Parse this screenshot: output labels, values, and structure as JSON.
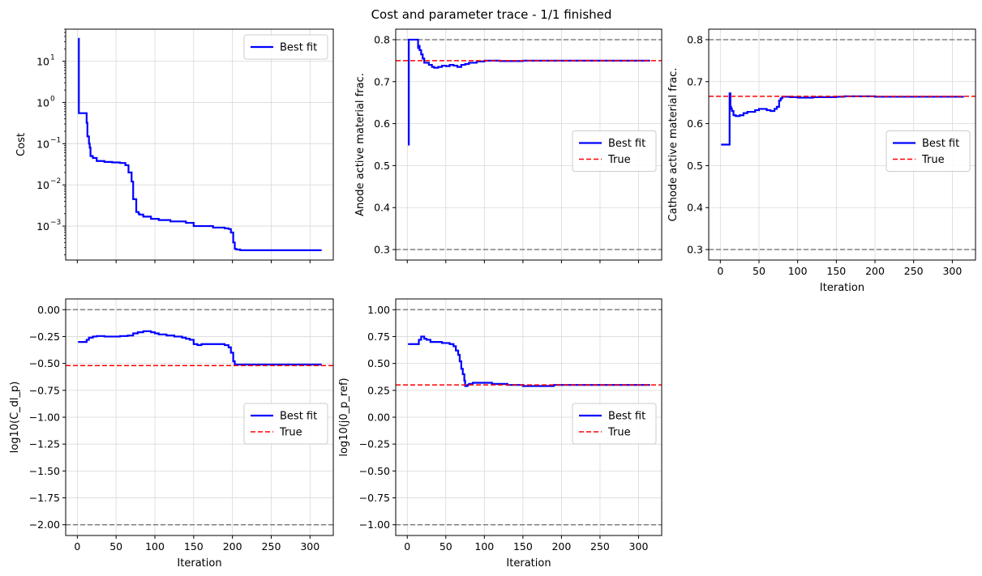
{
  "figure": {
    "title": "Cost and parameter trace - 1/1 finished",
    "colors": {
      "best_fit": "#0000ff",
      "true_line": "#ff0000",
      "bounds": "#808080",
      "grid": "#d9d9d9"
    }
  },
  "chart_data": [
    {
      "id": "cost",
      "type": "line",
      "yscale": "log",
      "title": "",
      "xlabel": "",
      "ylabel": "Cost",
      "xlim": [
        -15,
        330
      ],
      "ylim": [
        0.00015,
        60
      ],
      "xticks": [
        0,
        50,
        100,
        150,
        200,
        250,
        300
      ],
      "show_xticklabels": false,
      "yticks": [
        0.001,
        0.01,
        0.1,
        1,
        10
      ],
      "yticklabels": [
        "10",
        "10",
        "10",
        "10",
        "10"
      ],
      "ytick_exponents": [
        "−3",
        "−2",
        "−1",
        "0",
        "1"
      ],
      "legend": {
        "position": "top-right",
        "entries": [
          "Best fit"
        ]
      },
      "series": [
        {
          "name": "Best fit",
          "style": "solid",
          "steps": true,
          "x": [
            1,
            2,
            11,
            12,
            13,
            15,
            16,
            17,
            20,
            25,
            35,
            45,
            55,
            62,
            66,
            70,
            72,
            73,
            75,
            76,
            79,
            80,
            85,
            95,
            105,
            120,
            140,
            150,
            155,
            175,
            190,
            195,
            198,
            201,
            203,
            205,
            210,
            300,
            315
          ],
          "y": [
            35,
            0.55,
            0.55,
            0.32,
            0.15,
            0.1,
            0.08,
            0.05,
            0.045,
            0.038,
            0.036,
            0.035,
            0.034,
            0.03,
            0.02,
            0.012,
            0.0045,
            0.0045,
            0.0045,
            0.0022,
            0.002,
            0.0019,
            0.0017,
            0.0015,
            0.0014,
            0.0013,
            0.0012,
            0.001,
            0.001,
            0.00092,
            0.00088,
            0.00085,
            0.0007,
            0.0004,
            0.00028,
            0.00027,
            0.00026,
            0.00026,
            0.00026
          ]
        }
      ]
    },
    {
      "id": "anode",
      "type": "line",
      "title": "",
      "xlabel": "",
      "ylabel": "Anode active material frac.",
      "xlim": [
        -15,
        330
      ],
      "ylim": [
        0.275,
        0.825
      ],
      "xticks": [
        0,
        50,
        100,
        150,
        200,
        250,
        300
      ],
      "show_xticklabels": false,
      "yticks": [
        0.3,
        0.4,
        0.5,
        0.6,
        0.7,
        0.8
      ],
      "yticklabels": [
        "0.3",
        "0.4",
        "0.5",
        "0.6",
        "0.7",
        "0.8"
      ],
      "bounds": [
        0.3,
        0.8
      ],
      "true_value": 0.75,
      "legend": {
        "position": "center-right",
        "entries": [
          "Best fit",
          "True"
        ]
      },
      "series": [
        {
          "name": "Best fit",
          "style": "solid",
          "steps": true,
          "x": [
            1,
            2,
            13,
            14,
            15,
            16,
            18,
            20,
            22,
            25,
            28,
            32,
            35,
            40,
            45,
            50,
            55,
            60,
            65,
            70,
            75,
            80,
            90,
            100,
            120,
            150,
            200,
            250,
            315
          ],
          "y": [
            0.55,
            0.8,
            0.8,
            0.78,
            0.785,
            0.775,
            0.765,
            0.755,
            0.745,
            0.745,
            0.74,
            0.735,
            0.733,
            0.735,
            0.738,
            0.737,
            0.74,
            0.738,
            0.735,
            0.74,
            0.742,
            0.745,
            0.748,
            0.75,
            0.749,
            0.75,
            0.75,
            0.75,
            0.75
          ]
        },
        {
          "name": "True",
          "style": "dashed",
          "value": 0.75
        }
      ]
    },
    {
      "id": "cathode",
      "type": "line",
      "title": "",
      "xlabel": "Iteration",
      "ylabel": "Cathode active material frac.",
      "xlim": [
        -15,
        330
      ],
      "ylim": [
        0.275,
        0.825
      ],
      "xticks": [
        0,
        50,
        100,
        150,
        200,
        250,
        300
      ],
      "xticklabels": [
        "0",
        "50",
        "100",
        "150",
        "200",
        "250",
        "300"
      ],
      "show_xticklabels": true,
      "yticks": [
        0.3,
        0.4,
        0.5,
        0.6,
        0.7,
        0.8
      ],
      "yticklabels": [
        "0.3",
        "0.4",
        "0.5",
        "0.6",
        "0.7",
        "0.8"
      ],
      "bounds": [
        0.3,
        0.8
      ],
      "true_value": 0.665,
      "legend": {
        "position": "center-right",
        "entries": [
          "Best fit",
          "True"
        ]
      },
      "series": [
        {
          "name": "Best fit",
          "style": "solid",
          "steps": true,
          "x": [
            1,
            11,
            12,
            13,
            14,
            15,
            17,
            20,
            25,
            30,
            35,
            40,
            45,
            50,
            55,
            60,
            65,
            70,
            73,
            76,
            78,
            80,
            90,
            100,
            120,
            150,
            160,
            170,
            200,
            315
          ],
          "y": [
            0.55,
            0.55,
            0.672,
            0.64,
            0.635,
            0.63,
            0.62,
            0.618,
            0.62,
            0.625,
            0.628,
            0.628,
            0.632,
            0.635,
            0.635,
            0.632,
            0.63,
            0.635,
            0.64,
            0.655,
            0.66,
            0.664,
            0.663,
            0.662,
            0.663,
            0.664,
            0.665,
            0.665,
            0.664,
            0.664
          ]
        },
        {
          "name": "True",
          "style": "dashed",
          "value": 0.665
        }
      ]
    },
    {
      "id": "cdl",
      "type": "line",
      "title": "",
      "xlabel": "Iteration",
      "ylabel": "log10(C_dl_p)",
      "xlim": [
        -15,
        330
      ],
      "ylim": [
        -2.1,
        0.1
      ],
      "xticks": [
        0,
        50,
        100,
        150,
        200,
        250,
        300
      ],
      "xticklabels": [
        "0",
        "50",
        "100",
        "150",
        "200",
        "250",
        "300"
      ],
      "show_xticklabels": true,
      "yticks": [
        -2.0,
        -1.75,
        -1.5,
        -1.25,
        -1.0,
        -0.75,
        -0.5,
        -0.25,
        0.0
      ],
      "yticklabels": [
        "−2.00",
        "−1.75",
        "−1.50",
        "−1.25",
        "−1.00",
        "−0.75",
        "−0.50",
        "−0.25",
        "0.00"
      ],
      "bounds": [
        -2.0,
        0.0
      ],
      "true_value": -0.52,
      "legend": {
        "position": "center-right",
        "entries": [
          "Best fit",
          "True"
        ]
      },
      "series": [
        {
          "name": "Best fit",
          "style": "solid",
          "steps": true,
          "x": [
            1,
            10,
            12,
            15,
            20,
            25,
            35,
            45,
            55,
            65,
            72,
            78,
            85,
            95,
            100,
            105,
            115,
            125,
            135,
            140,
            145,
            150,
            155,
            160,
            170,
            180,
            190,
            195,
            198,
            201,
            203,
            205,
            210,
            250,
            315
          ],
          "y": [
            -0.3,
            -0.3,
            -0.28,
            -0.26,
            -0.25,
            -0.245,
            -0.25,
            -0.25,
            -0.245,
            -0.24,
            -0.22,
            -0.21,
            -0.2,
            -0.21,
            -0.22,
            -0.23,
            -0.24,
            -0.25,
            -0.26,
            -0.27,
            -0.28,
            -0.32,
            -0.33,
            -0.32,
            -0.32,
            -0.32,
            -0.33,
            -0.35,
            -0.4,
            -0.48,
            -0.51,
            -0.51,
            -0.51,
            -0.51,
            -0.51
          ]
        },
        {
          "name": "True",
          "style": "dashed",
          "value": -0.52
        }
      ]
    },
    {
      "id": "j0",
      "type": "line",
      "title": "",
      "xlabel": "Iteration",
      "ylabel": "log10(j0_p_ref)",
      "xlim": [
        -15,
        330
      ],
      "ylim": [
        -1.1,
        1.1
      ],
      "xticks": [
        0,
        50,
        100,
        150,
        200,
        250,
        300
      ],
      "xticklabels": [
        "0",
        "50",
        "100",
        "150",
        "200",
        "250",
        "300"
      ],
      "show_xticklabels": true,
      "yticks": [
        -1.0,
        -0.75,
        -0.5,
        -0.25,
        0.0,
        0.25,
        0.5,
        0.75,
        1.0
      ],
      "yticklabels": [
        "−1.00",
        "−0.75",
        "−0.50",
        "−0.25",
        "0.00",
        "0.25",
        "0.50",
        "0.75",
        "1.00"
      ],
      "bounds": [
        -1.0,
        1.0
      ],
      "true_value": 0.3,
      "legend": {
        "position": "center-right",
        "entries": [
          "Best fit",
          "True"
        ]
      },
      "series": [
        {
          "name": "Best fit",
          "style": "solid",
          "steps": true,
          "x": [
            1,
            12,
            15,
            18,
            22,
            25,
            30,
            35,
            45,
            55,
            60,
            63,
            66,
            68,
            70,
            72,
            74,
            75,
            76,
            78,
            80,
            85,
            95,
            110,
            130,
            150,
            170,
            190,
            220,
            315
          ],
          "y": [
            0.68,
            0.68,
            0.72,
            0.75,
            0.73,
            0.72,
            0.7,
            0.7,
            0.69,
            0.68,
            0.66,
            0.62,
            0.58,
            0.52,
            0.45,
            0.4,
            0.34,
            0.29,
            0.29,
            0.3,
            0.31,
            0.32,
            0.32,
            0.31,
            0.3,
            0.29,
            0.29,
            0.3,
            0.3,
            0.3
          ]
        },
        {
          "name": "True",
          "style": "dashed",
          "value": 0.3
        }
      ]
    }
  ]
}
